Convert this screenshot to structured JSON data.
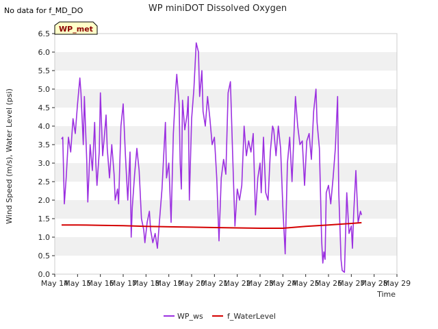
{
  "chart_data": {
    "type": "line",
    "title": "WP miniDOT Dissolved Oxygen",
    "note": "No data for f_MD_DO",
    "badge": "WP_met",
    "xlabel": "Time",
    "ylabel": "Wind Speed (m/s), Water Level (psi)",
    "ylim": [
      0,
      6.5
    ],
    "xlim": [
      14,
      29
    ],
    "y_ticks": [
      "0.0",
      "0.5",
      "1.0",
      "1.5",
      "2.0",
      "2.5",
      "3.0",
      "3.5",
      "4.0",
      "4.5",
      "5.0",
      "5.5",
      "6.0",
      "6.5"
    ],
    "x_ticks": [
      "May 14",
      "May 15",
      "May 16",
      "May 17",
      "May 18",
      "May 19",
      "May 20",
      "May 21",
      "May 22",
      "May 23",
      "May 24",
      "May 25",
      "May 26",
      "May 27",
      "May 28",
      "May 29"
    ],
    "grid": "horizontal bands",
    "legend": "bottom-center",
    "series": [
      {
        "name": "WP_ws",
        "color": "#9b30e0",
        "points": [
          [
            14.3,
            3.65
          ],
          [
            14.35,
            3.7
          ],
          [
            14.42,
            1.9
          ],
          [
            14.5,
            2.6
          ],
          [
            14.6,
            3.7
          ],
          [
            14.7,
            3.3
          ],
          [
            14.8,
            4.2
          ],
          [
            14.9,
            3.8
          ],
          [
            15.0,
            4.6
          ],
          [
            15.1,
            5.3
          ],
          [
            15.15,
            4.9
          ],
          [
            15.25,
            3.5
          ],
          [
            15.3,
            4.8
          ],
          [
            15.4,
            3.1
          ],
          [
            15.45,
            1.95
          ],
          [
            15.5,
            2.7
          ],
          [
            15.55,
            3.5
          ],
          [
            15.65,
            2.8
          ],
          [
            15.75,
            4.1
          ],
          [
            15.8,
            3.0
          ],
          [
            15.85,
            2.4
          ],
          [
            15.95,
            3.3
          ],
          [
            16.0,
            4.9
          ],
          [
            16.1,
            3.2
          ],
          [
            16.2,
            3.9
          ],
          [
            16.25,
            4.3
          ],
          [
            16.3,
            3.4
          ],
          [
            16.4,
            2.6
          ],
          [
            16.5,
            3.5
          ],
          [
            16.6,
            2.7
          ],
          [
            16.65,
            2.0
          ],
          [
            16.75,
            2.3
          ],
          [
            16.8,
            1.9
          ],
          [
            16.9,
            4.0
          ],
          [
            17.0,
            4.6
          ],
          [
            17.1,
            3.2
          ],
          [
            17.2,
            2.0
          ],
          [
            17.3,
            3.3
          ],
          [
            17.35,
            1.0
          ],
          [
            17.4,
            1.8
          ],
          [
            17.5,
            2.7
          ],
          [
            17.6,
            3.4
          ],
          [
            17.7,
            2.8
          ],
          [
            17.8,
            1.5
          ],
          [
            17.9,
            1.2
          ],
          [
            17.95,
            0.85
          ],
          [
            18.05,
            1.4
          ],
          [
            18.15,
            1.7
          ],
          [
            18.2,
            1.2
          ],
          [
            18.3,
            0.85
          ],
          [
            18.4,
            1.1
          ],
          [
            18.5,
            0.7
          ],
          [
            18.6,
            1.5
          ],
          [
            18.7,
            2.3
          ],
          [
            18.8,
            3.5
          ],
          [
            18.85,
            4.1
          ],
          [
            18.9,
            2.6
          ],
          [
            19.0,
            3.0
          ],
          [
            19.1,
            1.4
          ],
          [
            19.2,
            3.8
          ],
          [
            19.3,
            5.0
          ],
          [
            19.35,
            5.4
          ],
          [
            19.45,
            4.6
          ],
          [
            19.5,
            3.0
          ],
          [
            19.55,
            2.3
          ],
          [
            19.6,
            4.7
          ],
          [
            19.7,
            3.9
          ],
          [
            19.8,
            4.3
          ],
          [
            19.85,
            4.8
          ],
          [
            19.9,
            2.0
          ],
          [
            20.0,
            4.2
          ],
          [
            20.1,
            5.0
          ],
          [
            20.2,
            6.25
          ],
          [
            20.3,
            6.0
          ],
          [
            20.35,
            4.8
          ],
          [
            20.45,
            5.5
          ],
          [
            20.5,
            4.4
          ],
          [
            20.6,
            4.0
          ],
          [
            20.7,
            4.8
          ],
          [
            20.8,
            4.2
          ],
          [
            20.9,
            3.5
          ],
          [
            21.0,
            3.7
          ],
          [
            21.1,
            2.6
          ],
          [
            21.2,
            0.9
          ],
          [
            21.3,
            2.6
          ],
          [
            21.4,
            3.1
          ],
          [
            21.5,
            2.7
          ],
          [
            21.6,
            4.9
          ],
          [
            21.7,
            5.2
          ],
          [
            21.8,
            3.2
          ],
          [
            21.9,
            1.3
          ],
          [
            22.0,
            2.3
          ],
          [
            22.1,
            2.0
          ],
          [
            22.2,
            2.4
          ],
          [
            22.3,
            4.0
          ],
          [
            22.4,
            3.2
          ],
          [
            22.5,
            3.6
          ],
          [
            22.6,
            3.3
          ],
          [
            22.7,
            3.8
          ],
          [
            22.8,
            1.6
          ],
          [
            22.9,
            2.6
          ],
          [
            23.0,
            3.0
          ],
          [
            23.05,
            2.2
          ],
          [
            23.15,
            3.7
          ],
          [
            23.25,
            2.2
          ],
          [
            23.35,
            2.0
          ],
          [
            23.45,
            3.3
          ],
          [
            23.55,
            4.0
          ],
          [
            23.6,
            3.9
          ],
          [
            23.7,
            3.2
          ],
          [
            23.8,
            4.0
          ],
          [
            23.9,
            3.4
          ],
          [
            24.0,
            1.8
          ],
          [
            24.1,
            0.55
          ],
          [
            24.2,
            3.0
          ],
          [
            24.3,
            3.7
          ],
          [
            24.4,
            2.5
          ],
          [
            24.5,
            4.0
          ],
          [
            24.55,
            4.8
          ],
          [
            24.65,
            4.0
          ],
          [
            24.75,
            3.5
          ],
          [
            24.85,
            3.6
          ],
          [
            24.95,
            2.4
          ],
          [
            25.05,
            3.6
          ],
          [
            25.15,
            3.8
          ],
          [
            25.25,
            3.1
          ],
          [
            25.35,
            4.4
          ],
          [
            25.45,
            5.0
          ],
          [
            25.5,
            4.1
          ],
          [
            25.6,
            3.4
          ],
          [
            25.7,
            0.9
          ],
          [
            25.75,
            0.3
          ],
          [
            25.8,
            0.6
          ],
          [
            25.85,
            0.4
          ],
          [
            25.9,
            2.2
          ],
          [
            26.0,
            2.4
          ],
          [
            26.1,
            1.9
          ],
          [
            26.2,
            2.6
          ],
          [
            26.3,
            3.4
          ],
          [
            26.4,
            4.8
          ],
          [
            26.45,
            2.2
          ],
          [
            26.5,
            1.3
          ],
          [
            26.55,
            0.4
          ],
          [
            26.6,
            0.1
          ],
          [
            26.7,
            0.05
          ],
          [
            26.8,
            2.2
          ],
          [
            26.9,
            1.1
          ],
          [
            27.0,
            1.3
          ],
          [
            27.05,
            0.7
          ],
          [
            27.1,
            1.6
          ],
          [
            27.2,
            2.8
          ],
          [
            27.3,
            1.4
          ],
          [
            27.4,
            1.7
          ],
          [
            27.45,
            1.6
          ]
        ]
      },
      {
        "name": "f_WaterLevel",
        "color": "#d40000",
        "points": [
          [
            14.3,
            1.33
          ],
          [
            15.0,
            1.33
          ],
          [
            16.0,
            1.32
          ],
          [
            17.0,
            1.31
          ],
          [
            18.0,
            1.29
          ],
          [
            19.0,
            1.28
          ],
          [
            20.0,
            1.27
          ],
          [
            21.0,
            1.26
          ],
          [
            22.0,
            1.25
          ],
          [
            23.0,
            1.24
          ],
          [
            24.0,
            1.24
          ],
          [
            25.0,
            1.29
          ],
          [
            26.0,
            1.33
          ],
          [
            27.0,
            1.37
          ],
          [
            27.45,
            1.39
          ]
        ]
      }
    ]
  }
}
